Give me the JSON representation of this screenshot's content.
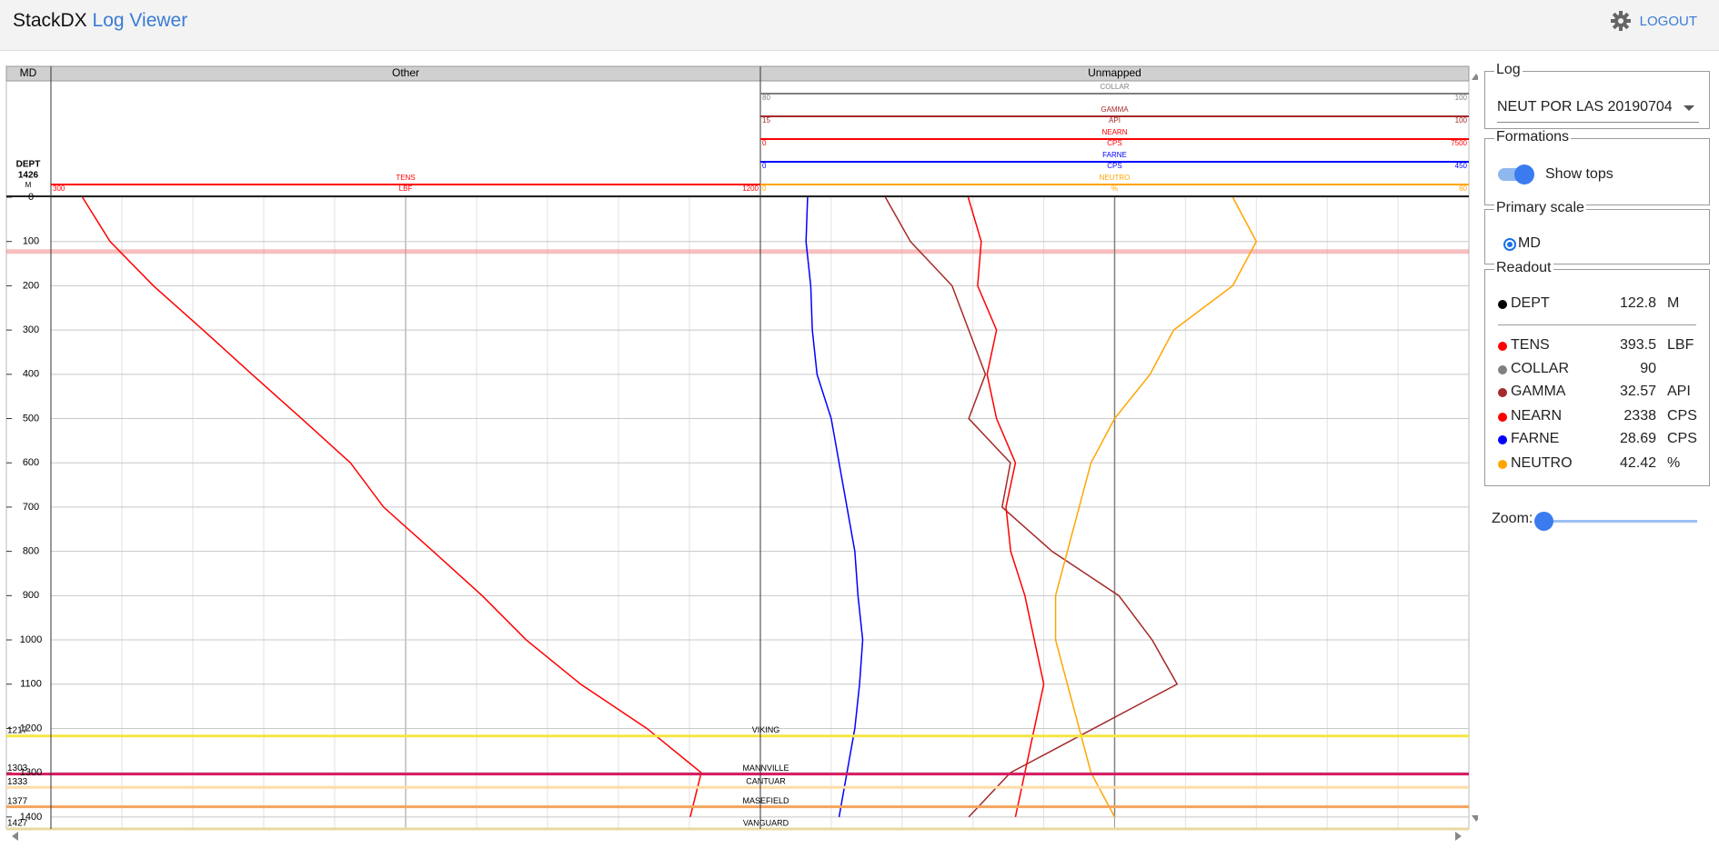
{
  "header": {
    "brand": "StackDX",
    "app": "Log Viewer",
    "logout": "LOGOUT"
  },
  "chart_data": {
    "type": "log",
    "index_header": "MD",
    "index_curve": {
      "name": "DEPT",
      "value": 1426,
      "unit": "M"
    },
    "ylim": [
      0,
      1427
    ],
    "yticks": [
      0,
      100,
      200,
      300,
      400,
      500,
      600,
      700,
      800,
      900,
      1000,
      1100,
      1200,
      1300,
      1400
    ],
    "grid": true,
    "depths": [
      0,
      100,
      200,
      300,
      400,
      500,
      600,
      700,
      800,
      900,
      1000,
      1100,
      1200,
      1300,
      1400
    ],
    "tracks": [
      {
        "title": "Other",
        "curves": [
          {
            "name": "TENS",
            "unit": "LBF",
            "color": "#ff0000",
            "xlim": [
              300,
              1200
            ],
            "values": [
              340,
              375,
              430,
              493,
              555,
              618,
              680,
              722,
              785,
              847,
              903,
              972,
              1056,
              1125,
              1111
            ]
          }
        ]
      },
      {
        "title": "Unmapped",
        "curves": [
          {
            "name": "COLLAR",
            "color": "#808080",
            "xlim": [
              80,
              100
            ],
            "values": [
              90,
              90,
              90,
              90,
              90,
              90,
              90,
              90,
              90,
              90,
              90,
              90,
              90,
              90,
              90
            ]
          },
          {
            "name": "GAMMA",
            "unit": "API",
            "color": "#a52a2a",
            "xlim": [
              15,
              100
            ],
            "values": [
              30,
              33,
              38,
              40,
              42,
              40,
              45,
              44,
              50,
              58,
              62,
              65,
              55,
              45,
              40
            ]
          },
          {
            "name": "NEARN",
            "unit": "CPS",
            "color": "#ff0000",
            "xlim": [
              0,
              7500
            ],
            "values": [
              2200,
              2338,
              2300,
              2500,
              2400,
              2500,
              2700,
              2600,
              2650,
              2800,
              2900,
              3000,
              2900,
              2800,
              2700
            ]
          },
          {
            "name": "FARNE",
            "unit": "CPS",
            "color": "#0000ff",
            "xlim": [
              0,
              450
            ],
            "values": [
              30,
              29,
              32,
              33,
              36,
              45,
              50,
              55,
              60,
              62,
              65,
              63,
              60,
              55,
              50
            ]
          },
          {
            "name": "NEUTRO",
            "unit": "%",
            "color": "#ffa500",
            "xlim": [
              0,
              60
            ],
            "values": [
              40,
              42,
              40,
              35,
              33,
              30,
              28,
              27,
              26,
              25,
              25,
              26,
              27,
              28,
              30
            ]
          }
        ]
      }
    ],
    "tops": [
      {
        "name": "VIKING",
        "depth": 1217,
        "color": "#f5e642"
      },
      {
        "name": "MANNVILLE",
        "depth": 1303,
        "color": "#d81b60"
      },
      {
        "name": "CANTUAR",
        "depth": 1333,
        "color": "#ffdca8"
      },
      {
        "name": "MASEFIELD",
        "depth": 1377,
        "color": "#f5a35c"
      },
      {
        "name": "VANGUARD",
        "depth": 1427,
        "color": "#e8d9a0"
      }
    ]
  },
  "panel": {
    "log": {
      "legend": "Log",
      "selected": "NEUT POR LAS 20190704"
    },
    "formations": {
      "legend": "Formations",
      "toggle": "Show tops"
    },
    "primary_scale": {
      "legend": "Primary scale",
      "option": "MD"
    },
    "readout": {
      "legend": "Readout",
      "rows": [
        {
          "name": "DEPT",
          "value": 122.8,
          "unit": "M",
          "color": "#000000"
        },
        {
          "name": "TENS",
          "value": 393.5,
          "unit": "LBF",
          "color": "#ff0000"
        },
        {
          "name": "COLLAR",
          "value": 90,
          "color": "#808080"
        },
        {
          "name": "GAMMA",
          "value": 32.57,
          "unit": "API",
          "color": "#a52a2a"
        },
        {
          "name": "NEARN",
          "value": 2338,
          "unit": "CPS",
          "color": "#ff0000"
        },
        {
          "name": "FARNE",
          "value": 28.69,
          "unit": "CPS",
          "color": "#0000ff"
        },
        {
          "name": "NEUTRO",
          "value": 42.42,
          "unit": "%",
          "color": "#ffa500"
        }
      ]
    },
    "zoom": "Zoom:"
  }
}
